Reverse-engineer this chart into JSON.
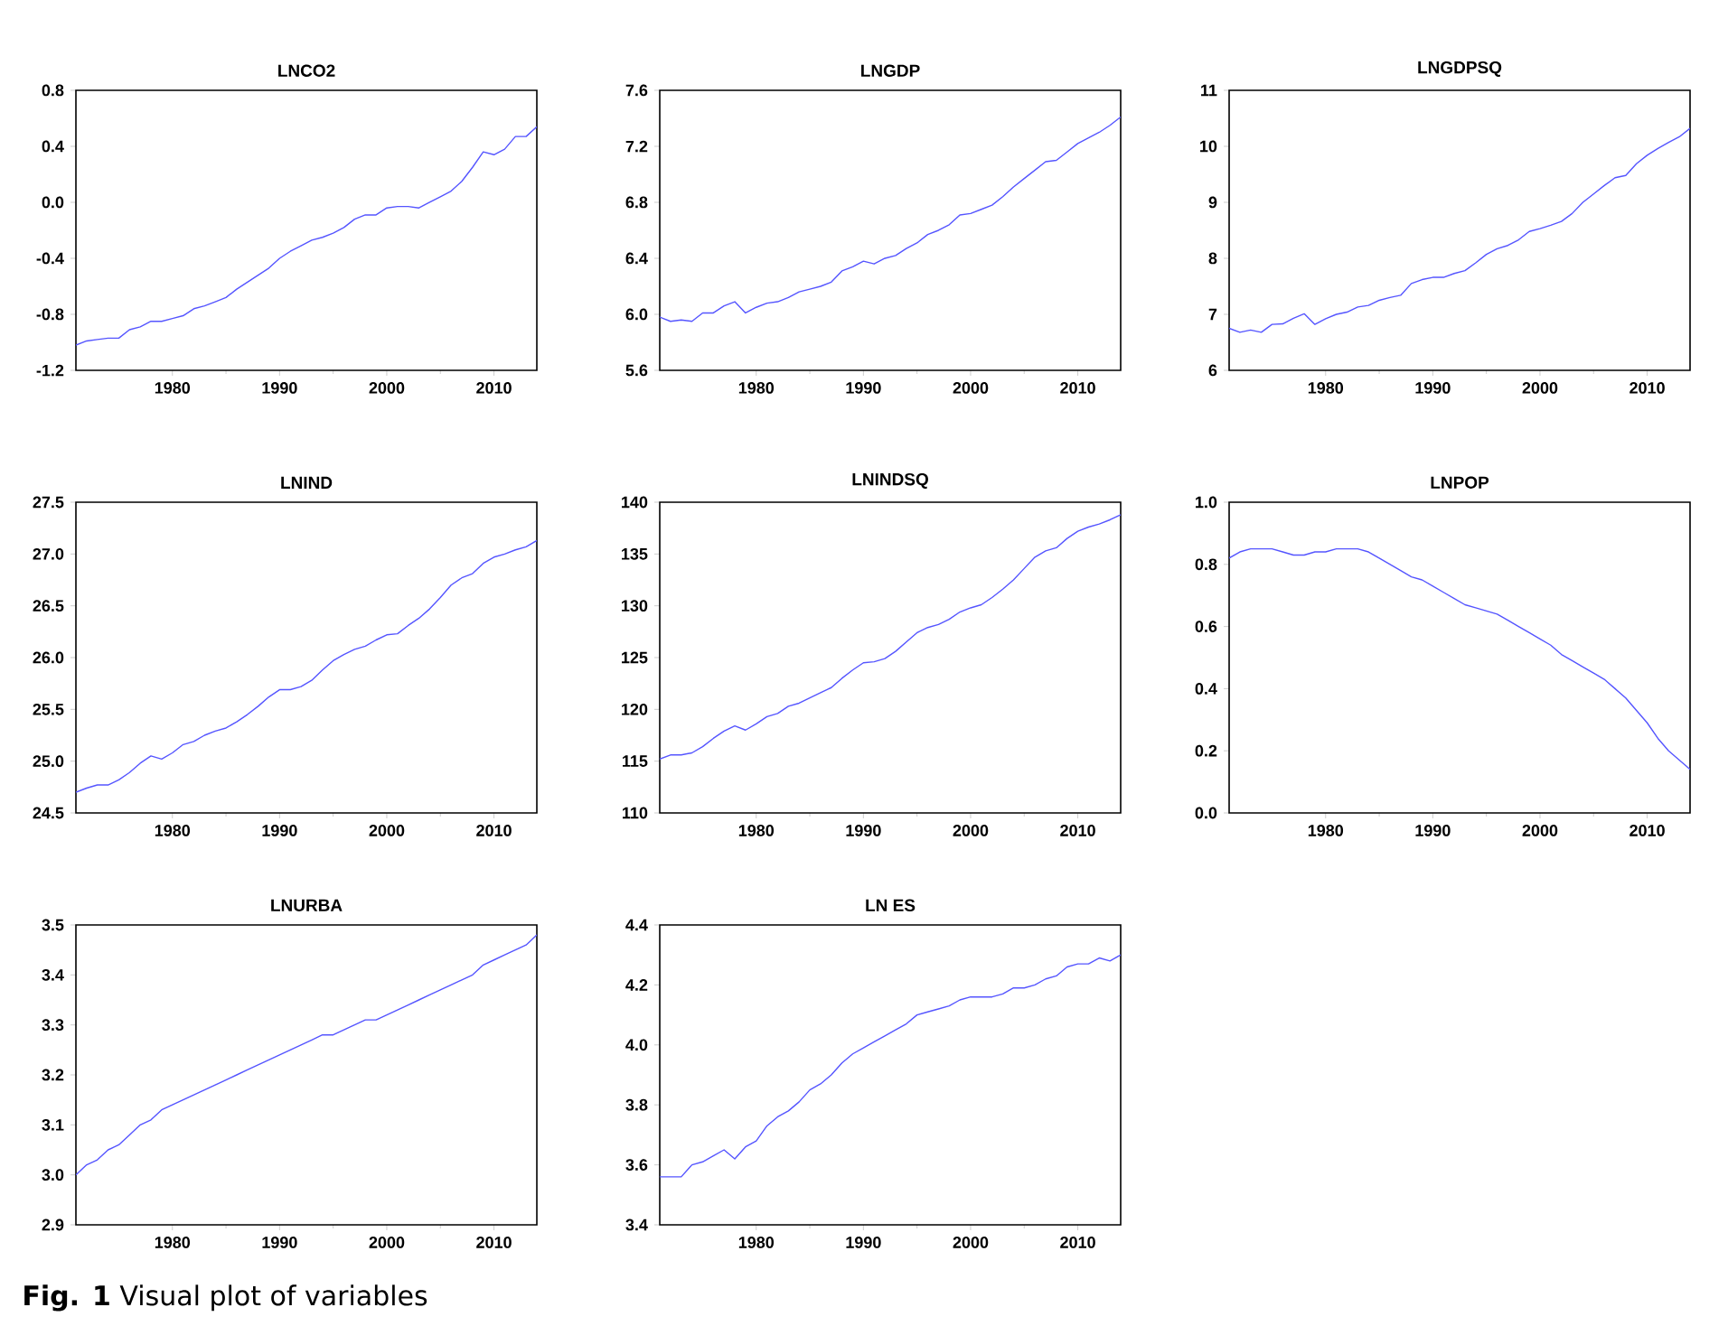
{
  "chart_data": [
    {
      "type": "line",
      "title": "LNCO2",
      "xlim": [
        1971,
        2014
      ],
      "xticks": [
        1980,
        1990,
        2000,
        2010
      ],
      "ylim": [
        -1.2,
        0.8
      ],
      "yticks": [
        -1.2,
        -0.8,
        -0.4,
        {
          "value": 0,
          "label": "0.0"
        },
        0.4,
        0.8
      ],
      "x": [
        1971,
        1972,
        1973,
        1974,
        1975,
        1976,
        1977,
        1978,
        1979,
        1980,
        1981,
        1982,
        1983,
        1984,
        1985,
        1986,
        1987,
        1988,
        1989,
        1990,
        1991,
        1992,
        1993,
        1994,
        1995,
        1996,
        1997,
        1998,
        1999,
        2000,
        2001,
        2002,
        2003,
        2004,
        2005,
        2006,
        2007,
        2008,
        2009,
        2010,
        2011,
        2012,
        2013,
        2014
      ],
      "series": [
        {
          "color": "#5555ff",
          "values": [
            -1.02,
            -0.99,
            -0.98,
            -0.97,
            -0.97,
            -0.91,
            -0.89,
            -0.85,
            -0.85,
            -0.83,
            -0.81,
            -0.76,
            -0.74,
            -0.71,
            -0.68,
            -0.62,
            -0.57,
            -0.52,
            -0.47,
            -0.4,
            -0.35,
            -0.31,
            -0.27,
            -0.25,
            -0.22,
            -0.18,
            -0.12,
            -0.09,
            -0.09,
            -0.04,
            -0.03,
            -0.03,
            -0.04,
            0.0,
            0.04,
            0.08,
            0.15,
            0.25,
            0.36,
            0.34,
            0.38,
            0.47,
            0.47,
            0.54
          ]
        }
      ]
    },
    {
      "type": "line",
      "title": "LNGDP",
      "xlim": [
        1971,
        2014
      ],
      "xticks": [
        1980,
        1990,
        2000,
        2010
      ],
      "ylim": [
        5.6,
        7.6
      ],
      "yticks": [
        5.6,
        {
          "value": 6,
          "label": "6.0"
        },
        6.4,
        6.8,
        7.2,
        7.6
      ],
      "x": [
        1971,
        1972,
        1973,
        1974,
        1975,
        1976,
        1977,
        1978,
        1979,
        1980,
        1981,
        1982,
        1983,
        1984,
        1985,
        1986,
        1987,
        1988,
        1989,
        1990,
        1991,
        1992,
        1993,
        1994,
        1995,
        1996,
        1997,
        1998,
        1999,
        2000,
        2001,
        2002,
        2003,
        2004,
        2005,
        2006,
        2007,
        2008,
        2009,
        2010,
        2011,
        2012,
        2013,
        2014
      ],
      "series": [
        {
          "color": "#5555ff",
          "values": [
            5.98,
            5.95,
            5.96,
            5.95,
            6.01,
            6.01,
            6.06,
            6.09,
            6.01,
            6.05,
            6.08,
            6.09,
            6.12,
            6.16,
            6.18,
            6.2,
            6.23,
            6.31,
            6.34,
            6.38,
            6.36,
            6.4,
            6.42,
            6.47,
            6.51,
            6.57,
            6.6,
            6.64,
            6.71,
            6.72,
            6.75,
            6.78,
            6.84,
            6.91,
            6.97,
            7.03,
            7.09,
            7.1,
            7.16,
            7.22,
            7.26,
            7.3,
            7.35,
            7.41
          ]
        }
      ]
    },
    {
      "type": "line",
      "title": "LNGDPSQ",
      "xlim": [
        1971,
        2014
      ],
      "xticks": [
        1980,
        1990,
        2000,
        2010
      ],
      "ylim": [
        6,
        11
      ],
      "yticks": [
        6,
        7,
        8,
        9,
        10,
        11
      ],
      "x": [
        1971,
        1972,
        1973,
        1974,
        1975,
        1976,
        1977,
        1978,
        1979,
        1980,
        1981,
        1982,
        1983,
        1984,
        1985,
        1986,
        1987,
        1988,
        1989,
        1990,
        1991,
        1992,
        1993,
        1994,
        1995,
        1996,
        1997,
        1998,
        1999,
        2000,
        2001,
        2002,
        2003,
        2004,
        2005,
        2006,
        2007,
        2008,
        2009,
        2010,
        2011,
        2012,
        2013,
        2014
      ],
      "series": [
        {
          "color": "#5555ff",
          "values": [
            6.75,
            6.68,
            6.72,
            6.68,
            6.82,
            6.83,
            6.93,
            7.01,
            6.82,
            6.92,
            7.0,
            7.04,
            7.13,
            7.16,
            7.25,
            7.3,
            7.34,
            7.55,
            7.62,
            7.66,
            7.66,
            7.73,
            7.78,
            7.92,
            8.07,
            8.17,
            8.23,
            8.33,
            8.48,
            8.53,
            8.59,
            8.66,
            8.8,
            9.0,
            9.15,
            9.3,
            9.44,
            9.48,
            9.69,
            9.84,
            9.96,
            10.07,
            10.17,
            10.32
          ]
        }
      ]
    },
    {
      "type": "line",
      "title": "LNIND",
      "xlim": [
        1971,
        2014
      ],
      "xticks": [
        1980,
        1990,
        2000,
        2010
      ],
      "ylim": [
        24.5,
        27.5
      ],
      "yticks": [
        24.5,
        {
          "value": 25,
          "label": "25.0"
        },
        25.5,
        {
          "value": 26,
          "label": "26.0"
        },
        26.5,
        {
          "value": 27,
          "label": "27.0"
        },
        27.5
      ],
      "x": [
        1971,
        1972,
        1973,
        1974,
        1975,
        1976,
        1977,
        1978,
        1979,
        1980,
        1981,
        1982,
        1983,
        1984,
        1985,
        1986,
        1987,
        1988,
        1989,
        1990,
        1991,
        1992,
        1993,
        1994,
        1995,
        1996,
        1997,
        1998,
        1999,
        2000,
        2001,
        2002,
        2003,
        2004,
        2005,
        2006,
        2007,
        2008,
        2009,
        2010,
        2011,
        2012,
        2013,
        2014
      ],
      "series": [
        {
          "color": "#5555ff",
          "values": [
            24.7,
            24.74,
            24.77,
            24.77,
            24.82,
            24.89,
            24.98,
            25.05,
            25.02,
            25.08,
            25.16,
            25.19,
            25.25,
            25.29,
            25.32,
            25.38,
            25.45,
            25.53,
            25.62,
            25.69,
            25.69,
            25.72,
            25.78,
            25.88,
            25.97,
            26.03,
            26.08,
            26.11,
            26.17,
            26.22,
            26.23,
            26.31,
            26.38,
            26.47,
            26.58,
            26.7,
            26.77,
            26.81,
            26.91,
            26.97,
            27.0,
            27.04,
            27.07,
            27.13
          ]
        }
      ]
    },
    {
      "type": "line",
      "title": "LNINDSQ",
      "xlim": [
        1971,
        2014
      ],
      "xticks": [
        1980,
        1990,
        2000,
        2010
      ],
      "ylim": [
        110,
        140
      ],
      "yticks": [
        110,
        115,
        120,
        125,
        130,
        135,
        140
      ],
      "x": [
        1971,
        1972,
        1973,
        1974,
        1975,
        1976,
        1977,
        1978,
        1979,
        1980,
        1981,
        1982,
        1983,
        1984,
        1985,
        1986,
        1987,
        1988,
        1989,
        1990,
        1991,
        1992,
        1993,
        1994,
        1995,
        1996,
        1997,
        1998,
        1999,
        2000,
        2001,
        2002,
        2003,
        2004,
        2005,
        2006,
        2007,
        2008,
        2009,
        2010,
        2011,
        2012,
        2013,
        2014
      ],
      "series": [
        {
          "color": "#5555ff",
          "values": [
            115.2,
            115.6,
            115.6,
            115.8,
            116.4,
            117.2,
            117.9,
            118.4,
            118.0,
            118.6,
            119.3,
            119.6,
            120.3,
            120.6,
            121.1,
            121.6,
            122.1,
            123.0,
            123.8,
            124.5,
            124.6,
            124.9,
            125.6,
            126.5,
            127.4,
            127.9,
            128.2,
            128.7,
            129.4,
            129.8,
            130.1,
            130.8,
            131.6,
            132.5,
            133.6,
            134.7,
            135.3,
            135.6,
            136.5,
            137.2,
            137.6,
            137.9,
            138.3,
            138.8
          ]
        }
      ]
    },
    {
      "type": "line",
      "title": "LNPOP",
      "xlim": [
        1971,
        2014
      ],
      "xticks": [
        1980,
        1990,
        2000,
        2010
      ],
      "ylim": [
        0,
        1
      ],
      "yticks": [
        {
          "value": 0,
          "label": "0.0"
        },
        0.2,
        0.4,
        0.6,
        0.8,
        {
          "value": 1,
          "label": "1.0"
        }
      ],
      "x": [
        1971,
        1972,
        1973,
        1974,
        1975,
        1976,
        1977,
        1978,
        1979,
        1980,
        1981,
        1982,
        1983,
        1984,
        1985,
        1986,
        1987,
        1988,
        1989,
        1990,
        1991,
        1992,
        1993,
        1994,
        1995,
        1996,
        1997,
        1998,
        1999,
        2000,
        2001,
        2002,
        2003,
        2004,
        2005,
        2006,
        2007,
        2008,
        2009,
        2010,
        2011,
        2012,
        2013,
        2014
      ],
      "series": [
        {
          "color": "#5555ff",
          "values": [
            0.82,
            0.84,
            0.85,
            0.85,
            0.85,
            0.84,
            0.83,
            0.83,
            0.84,
            0.84,
            0.85,
            0.85,
            0.85,
            0.84,
            0.82,
            0.8,
            0.78,
            0.76,
            0.75,
            0.73,
            0.71,
            0.69,
            0.67,
            0.66,
            0.65,
            0.64,
            0.62,
            0.6,
            0.58,
            0.56,
            0.54,
            0.51,
            0.49,
            0.47,
            0.45,
            0.43,
            0.4,
            0.37,
            0.33,
            0.29,
            0.24,
            0.2,
            0.17,
            0.14
          ]
        }
      ]
    },
    {
      "type": "line",
      "title": "LNURBA",
      "xlim": [
        1971,
        2014
      ],
      "xticks": [
        1980,
        1990,
        2000,
        2010
      ],
      "ylim": [
        2.9,
        3.5
      ],
      "yticks": [
        2.9,
        {
          "value": 3,
          "label": "3.0"
        },
        3.1,
        3.2,
        3.3,
        3.4,
        3.5
      ],
      "x": [
        1971,
        1972,
        1973,
        1974,
        1975,
        1976,
        1977,
        1978,
        1979,
        1980,
        1981,
        1982,
        1983,
        1984,
        1985,
        1986,
        1987,
        1988,
        1989,
        1990,
        1991,
        1992,
        1993,
        1994,
        1995,
        1996,
        1997,
        1998,
        1999,
        2000,
        2001,
        2002,
        2003,
        2004,
        2005,
        2006,
        2007,
        2008,
        2009,
        2010,
        2011,
        2012,
        2013,
        2014
      ],
      "series": [
        {
          "color": "#5555ff",
          "values": [
            3.0,
            3.02,
            3.03,
            3.05,
            3.06,
            3.08,
            3.1,
            3.11,
            3.13,
            3.14,
            3.15,
            3.16,
            3.17,
            3.18,
            3.19,
            3.2,
            3.21,
            3.22,
            3.23,
            3.24,
            3.25,
            3.26,
            3.27,
            3.28,
            3.28,
            3.29,
            3.3,
            3.31,
            3.31,
            3.32,
            3.33,
            3.34,
            3.35,
            3.36,
            3.37,
            3.38,
            3.39,
            3.4,
            3.42,
            3.43,
            3.44,
            3.45,
            3.46,
            3.48
          ]
        }
      ]
    },
    {
      "type": "line",
      "title": "LN ES",
      "xlim": [
        1971,
        2014
      ],
      "xticks": [
        1980,
        1990,
        2000,
        2010
      ],
      "ylim": [
        3.4,
        4.4
      ],
      "yticks": [
        3.4,
        3.6,
        3.8,
        {
          "value": 4,
          "label": "4.0"
        },
        4.2,
        4.4
      ],
      "annotations": [
        "**Fig. 1** Visual plot of variables"
      ],
      "x": [
        1971,
        1972,
        1973,
        1974,
        1975,
        1976,
        1977,
        1978,
        1979,
        1980,
        1981,
        1982,
        1983,
        1984,
        1985,
        1986,
        1987,
        1988,
        1989,
        1990,
        1991,
        1992,
        1993,
        1994,
        1995,
        1996,
        1997,
        1998,
        1999,
        2000,
        2001,
        2002,
        2003,
        2004,
        2005,
        2006,
        2007,
        2008,
        2009,
        2010,
        2011,
        2012,
        2013,
        2014
      ],
      "series": [
        {
          "color": "#5555ff",
          "values": [
            3.56,
            3.56,
            3.56,
            3.6,
            3.61,
            3.63,
            3.65,
            3.62,
            3.66,
            3.68,
            3.73,
            3.76,
            3.78,
            3.81,
            3.85,
            3.87,
            3.9,
            3.94,
            3.97,
            3.99,
            4.01,
            4.03,
            4.05,
            4.07,
            4.1,
            4.11,
            4.12,
            4.13,
            4.15,
            4.16,
            4.16,
            4.16,
            4.17,
            4.19,
            4.19,
            4.2,
            4.22,
            4.23,
            4.26,
            4.27,
            4.27,
            4.29,
            4.28,
            4.3
          ]
        }
      ]
    }
  ]
}
